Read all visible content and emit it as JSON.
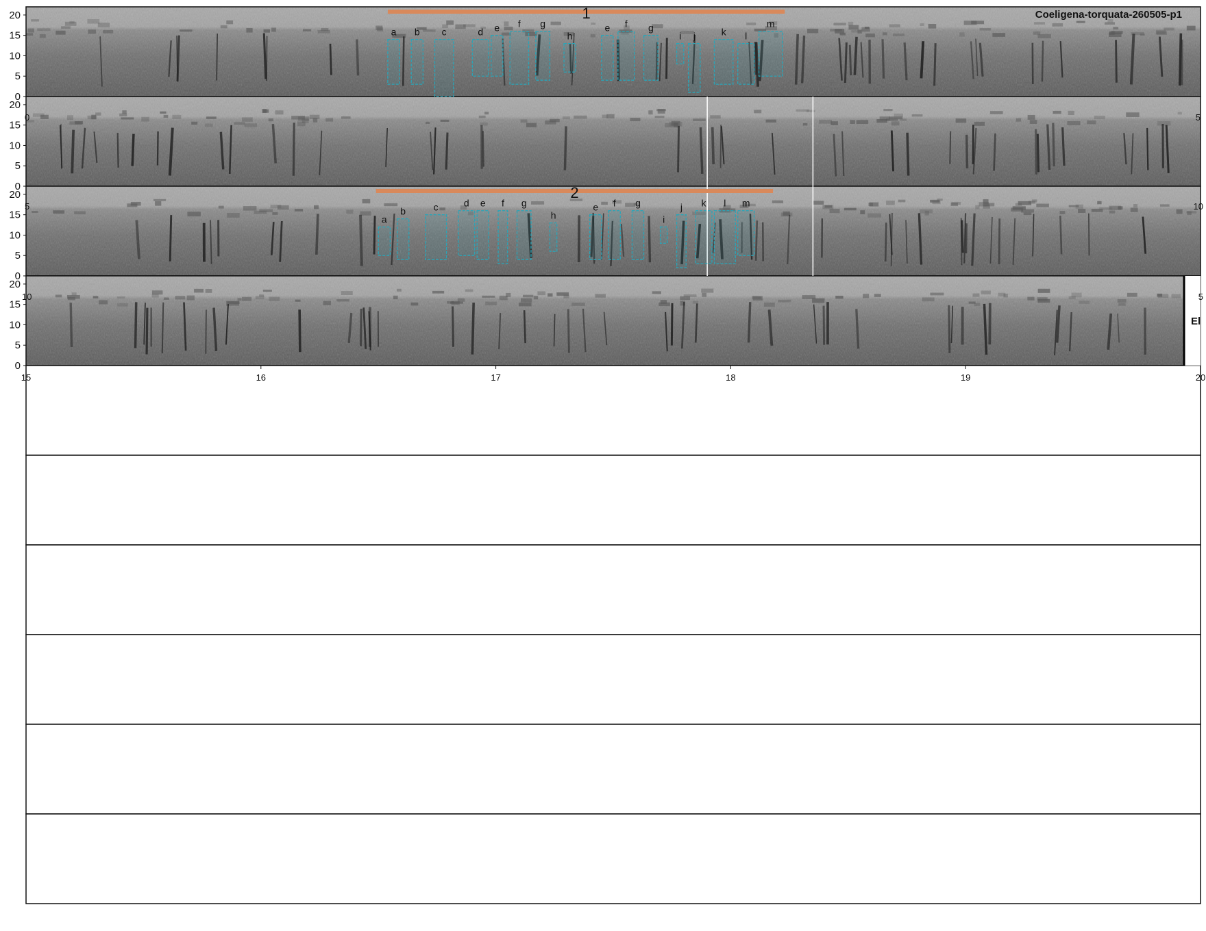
{
  "title": "Coeligena-torquata-260505-p1",
  "colors": {
    "annotation_bar": "#d9895b",
    "segment_box": "#2aa5b8",
    "spectrogram_light": "#a8a8a8",
    "spectrogram_dark": "#2a2a2a"
  },
  "y_ticks": [
    "20",
    "15",
    "10",
    "5",
    "0"
  ],
  "x_ticks": [
    "15",
    "16",
    "17",
    "18",
    "19",
    "20"
  ],
  "edge_labels": {
    "row2_left": "0",
    "row2_right": "5",
    "row3_left": "5",
    "row3_right": "10",
    "row4_left": "10",
    "row4_right": "5"
  },
  "end_marker": "El",
  "chart_data": {
    "type": "spectrogram",
    "ylabel_units": "kHz",
    "ylim": [
      0,
      22
    ],
    "rows": [
      {
        "x_range_s": [
          0,
          5
        ]
      },
      {
        "x_range_s": [
          5,
          10
        ]
      },
      {
        "x_range_s": [
          10,
          15
        ]
      },
      {
        "x_range_s": [
          15,
          20
        ]
      }
    ],
    "empty_rows": 6,
    "annotations": [
      {
        "row": 1,
        "label": "1",
        "time_range_s": [
          1.54,
          3.23
        ],
        "segments": [
          {
            "label": "a",
            "t": [
              1.54,
              1.59
            ],
            "f": [
              3,
              14
            ]
          },
          {
            "label": "b",
            "t": [
              1.64,
              1.69
            ],
            "f": [
              3,
              14
            ]
          },
          {
            "label": "c",
            "t": [
              1.74,
              1.82
            ],
            "f": [
              0,
              14
            ]
          },
          {
            "label": "d",
            "t": [
              1.9,
              1.97
            ],
            "f": [
              5,
              14
            ]
          },
          {
            "label": "e",
            "t": [
              1.98,
              2.03
            ],
            "f": [
              5,
              15
            ]
          },
          {
            "label": "f",
            "t": [
              2.06,
              2.14
            ],
            "f": [
              3,
              16
            ]
          },
          {
            "label": "g",
            "t": [
              2.17,
              2.23
            ],
            "f": [
              4,
              16
            ]
          },
          {
            "label": "h",
            "t": [
              2.29,
              2.34
            ],
            "f": [
              6,
              13
            ]
          },
          {
            "label": "e",
            "t": [
              2.45,
              2.5
            ],
            "f": [
              4,
              15
            ]
          },
          {
            "label": "f",
            "t": [
              2.52,
              2.59
            ],
            "f": [
              4,
              16
            ]
          },
          {
            "label": "g",
            "t": [
              2.63,
              2.69
            ],
            "f": [
              4,
              15
            ]
          },
          {
            "label": "i",
            "t": [
              2.77,
              2.8
            ],
            "f": [
              8,
              13
            ]
          },
          {
            "label": "j",
            "t": [
              2.82,
              2.87
            ],
            "f": [
              1,
              13
            ]
          },
          {
            "label": "k",
            "t": [
              2.93,
              3.01
            ],
            "f": [
              3,
              14
            ]
          },
          {
            "label": "l",
            "t": [
              3.03,
              3.1
            ],
            "f": [
              3,
              13
            ]
          },
          {
            "label": "m",
            "t": [
              3.12,
              3.22
            ],
            "f": [
              5,
              16
            ]
          }
        ]
      },
      {
        "row": 3,
        "label": "2",
        "time_range_s": [
          11.49,
          13.18
        ],
        "segments": [
          {
            "label": "a",
            "t": [
              11.5,
              11.55
            ],
            "f": [
              5,
              12
            ]
          },
          {
            "label": "b",
            "t": [
              11.58,
              11.63
            ],
            "f": [
              4,
              14
            ]
          },
          {
            "label": "c",
            "t": [
              11.7,
              11.79
            ],
            "f": [
              4,
              15
            ]
          },
          {
            "label": "d",
            "t": [
              11.84,
              11.91
            ],
            "f": [
              5,
              16
            ]
          },
          {
            "label": "e",
            "t": [
              11.92,
              11.97
            ],
            "f": [
              4,
              16
            ]
          },
          {
            "label": "f",
            "t": [
              12.01,
              12.05
            ],
            "f": [
              3,
              16
            ]
          },
          {
            "label": "g",
            "t": [
              12.09,
              12.15
            ],
            "f": [
              4,
              16
            ]
          },
          {
            "label": "h",
            "t": [
              12.23,
              12.26
            ],
            "f": [
              6,
              13
            ]
          },
          {
            "label": "e",
            "t": [
              12.4,
              12.45
            ],
            "f": [
              4,
              15
            ]
          },
          {
            "label": "f",
            "t": [
              12.48,
              12.53
            ],
            "f": [
              4,
              16
            ]
          },
          {
            "label": "g",
            "t": [
              12.58,
              12.63
            ],
            "f": [
              4,
              16
            ]
          },
          {
            "label": "i",
            "t": [
              12.7,
              12.73
            ],
            "f": [
              8,
              12
            ]
          },
          {
            "label": "j",
            "t": [
              12.77,
              12.81
            ],
            "f": [
              2,
              15
            ]
          },
          {
            "label": "k",
            "t": [
              12.85,
              12.92
            ],
            "f": [
              3,
              16
            ]
          },
          {
            "label": "l",
            "t": [
              12.93,
              13.02
            ],
            "f": [
              3,
              16
            ]
          },
          {
            "label": "m",
            "t": [
              13.03,
              13.1
            ],
            "f": [
              5,
              16
            ]
          }
        ]
      }
    ],
    "markers_s": [
      7.9,
      8.35,
      12.9,
      13.35,
      19.93
    ]
  }
}
